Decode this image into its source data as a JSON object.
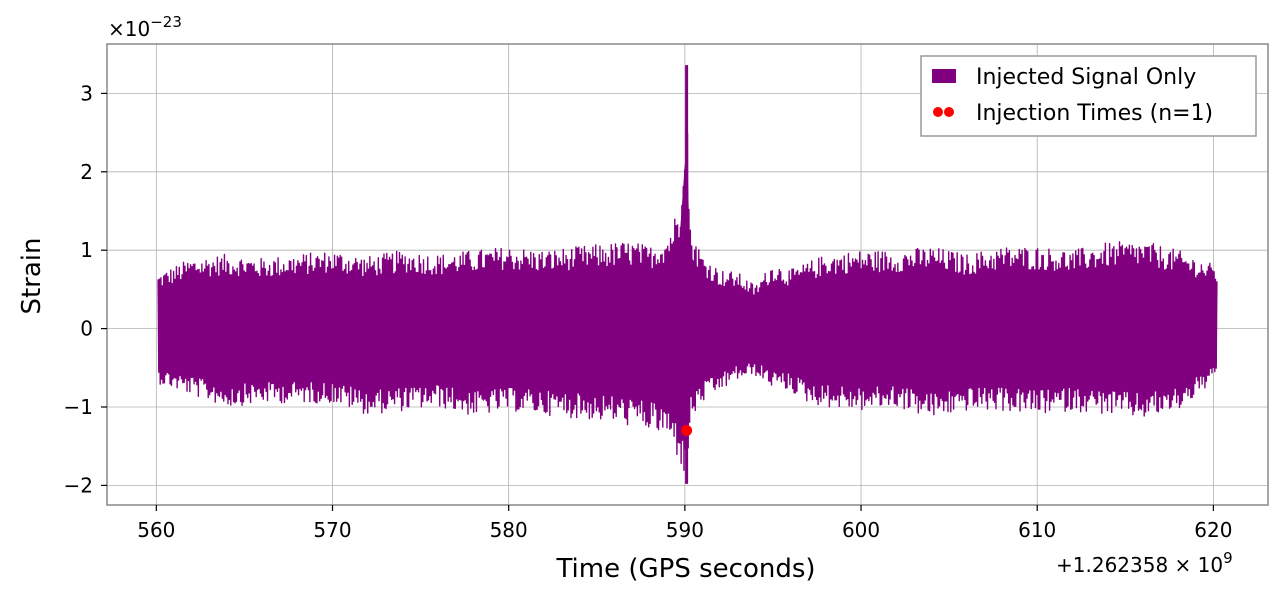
{
  "chart_data": {
    "type": "line",
    "xlabel": "Time (GPS seconds)",
    "ylabel": "Strain",
    "x_offset_label": "+1.262358 × 10",
    "x_offset_exp": "9",
    "y_scale_label": "×10",
    "y_scale_exp": "−23",
    "xlim": [
      557.2,
      623.1
    ],
    "ylim": [
      -2.25,
      3.63
    ],
    "x_ticks": [
      560,
      570,
      580,
      590,
      600,
      610,
      620
    ],
    "x_tick_labels": [
      "560",
      "570",
      "580",
      "590",
      "600",
      "610",
      "620"
    ],
    "y_ticks": [
      -2,
      -1,
      0,
      1,
      2,
      3
    ],
    "y_tick_labels": [
      "−2",
      "−1",
      "0",
      "1",
      "2",
      "3"
    ],
    "grid": true,
    "legend_position": "top-right",
    "series": [
      {
        "name": "Injected Signal Only",
        "kind": "filled-oscillation",
        "color": "#800080",
        "x_range": [
          560.1,
          620.2
        ],
        "envelope_upper": [
          [
            560.1,
            0.7
          ],
          [
            562,
            0.9
          ],
          [
            564,
            0.95
          ],
          [
            566,
            0.9
          ],
          [
            568,
            0.95
          ],
          [
            570,
            1.0
          ],
          [
            572,
            0.92
          ],
          [
            574,
            1.0
          ],
          [
            576,
            0.95
          ],
          [
            578,
            1.0
          ],
          [
            580,
            1.05
          ],
          [
            582,
            1.0
          ],
          [
            584,
            1.05
          ],
          [
            586,
            1.1
          ],
          [
            587,
            1.12
          ],
          [
            588,
            1.05
          ],
          [
            589,
            1.2
          ],
          [
            589.7,
            1.6
          ],
          [
            590.1,
            3.36
          ],
          [
            590.3,
            1.3
          ],
          [
            591,
            0.95
          ],
          [
            592,
            0.75
          ],
          [
            593,
            0.72
          ],
          [
            594,
            0.55
          ],
          [
            595,
            0.85
          ],
          [
            596,
            0.75
          ],
          [
            597,
            0.85
          ],
          [
            598,
            0.95
          ],
          [
            600,
            1.0
          ],
          [
            602,
            1.0
          ],
          [
            604,
            1.05
          ],
          [
            606,
            0.95
          ],
          [
            608,
            1.05
          ],
          [
            610,
            1.05
          ],
          [
            612,
            1.0
          ],
          [
            614,
            1.1
          ],
          [
            616,
            1.12
          ],
          [
            618,
            1.0
          ],
          [
            620.2,
            0.8
          ]
        ],
        "envelope_lower": [
          [
            560.1,
            -0.7
          ],
          [
            562,
            -0.85
          ],
          [
            564,
            -1.0
          ],
          [
            566,
            -0.95
          ],
          [
            568,
            -0.95
          ],
          [
            570,
            -0.95
          ],
          [
            572,
            -1.1
          ],
          [
            574,
            -1.05
          ],
          [
            576,
            -1.0
          ],
          [
            578,
            -1.12
          ],
          [
            580,
            -1.05
          ],
          [
            582,
            -1.1
          ],
          [
            584,
            -1.15
          ],
          [
            586,
            -1.2
          ],
          [
            587,
            -1.25
          ],
          [
            588,
            -1.3
          ],
          [
            589,
            -1.4
          ],
          [
            589.7,
            -1.7
          ],
          [
            590.1,
            -1.98
          ],
          [
            590.3,
            -1.2
          ],
          [
            591,
            -0.95
          ],
          [
            592,
            -0.8
          ],
          [
            593,
            -0.65
          ],
          [
            594,
            -0.6
          ],
          [
            595,
            -0.75
          ],
          [
            596,
            -0.8
          ],
          [
            597,
            -0.95
          ],
          [
            598,
            -1.0
          ],
          [
            600,
            -1.05
          ],
          [
            602,
            -1.0
          ],
          [
            604,
            -1.15
          ],
          [
            606,
            -1.05
          ],
          [
            608,
            -1.05
          ],
          [
            610,
            -1.1
          ],
          [
            612,
            -1.05
          ],
          [
            614,
            -1.1
          ],
          [
            616,
            -1.15
          ],
          [
            618,
            -1.05
          ],
          [
            620.2,
            -0.65
          ]
        ]
      },
      {
        "name": "Injection Times (n=1)",
        "kind": "scatter",
        "color": "#ff0000",
        "points": [
          [
            590.1,
            -1.3
          ]
        ]
      }
    ]
  }
}
